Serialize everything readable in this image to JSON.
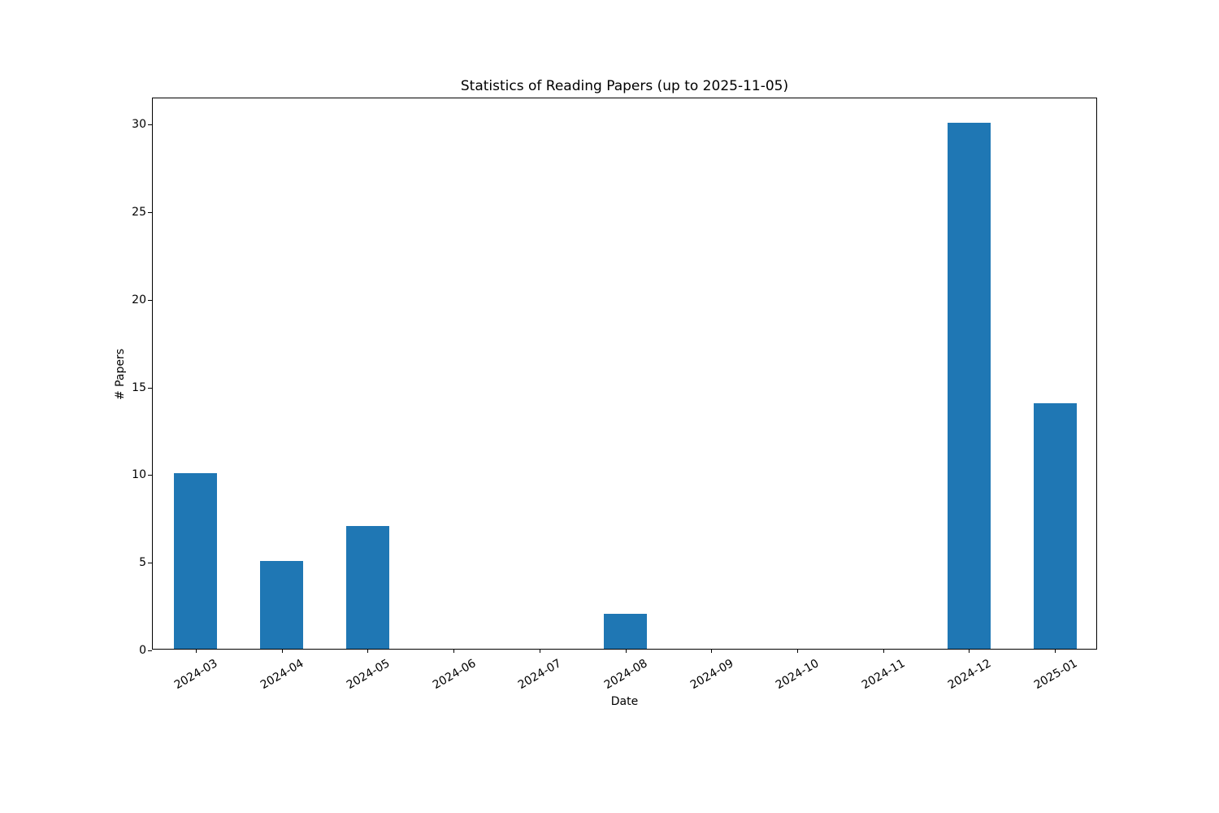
{
  "chart_data": {
    "type": "bar",
    "title": "Statistics of Reading Papers (up to 2025-11-05)",
    "xlabel": "Date",
    "ylabel": "# Papers",
    "categories": [
      "2024-03",
      "2024-04",
      "2024-05",
      "2024-06",
      "2024-07",
      "2024-08",
      "2024-09",
      "2024-10",
      "2024-11",
      "2024-12",
      "2025-01"
    ],
    "values": [
      10,
      5,
      7,
      0,
      0,
      2,
      0,
      0,
      0,
      30,
      14
    ],
    "yticks": [
      0,
      5,
      10,
      15,
      20,
      25,
      30
    ],
    "ylim": [
      0,
      31.5
    ],
    "xtick_rotation_deg": 30,
    "bar_color": "#1f77b4",
    "background_color": "#ffffff",
    "grid": false,
    "legend": null
  }
}
